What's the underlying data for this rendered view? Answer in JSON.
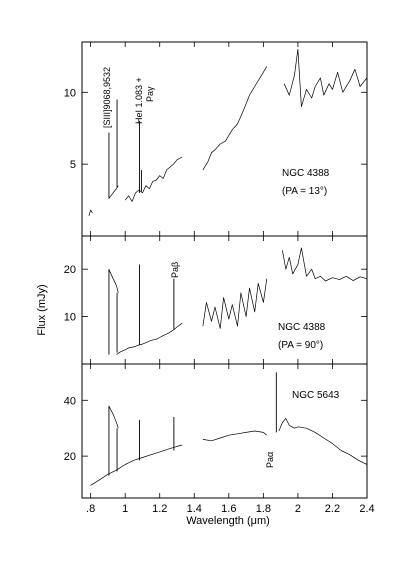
{
  "figure": {
    "ylabel": "Flux (mJy)",
    "xlabel": "Wavelength (μm)",
    "x_ticks": [
      ".8",
      "1",
      "1.2",
      "1.4",
      "1.6",
      "1.8",
      "2",
      "2.2",
      "2.4"
    ]
  },
  "chart_data": [
    {
      "type": "line",
      "name": "panel-1",
      "xlim": [
        0.75,
        2.4
      ],
      "ylim": [
        0,
        13.5
      ],
      "y_ticks": [
        5,
        10
      ],
      "object_label": "NGC 4388",
      "pa_label": "(PA = 13°)",
      "line_labels": [
        "[SIII]9068,9532",
        "HeI 1.083 +",
        "Paγ"
      ],
      "spectrum": {
        "segments": [
          {
            "x": [
              0.79,
              0.8,
              0.81
            ],
            "y": [
              1.4,
              1.8,
              1.6
            ]
          },
          {
            "x": [
              0.905,
              0.93,
              0.95,
              0.96
            ],
            "y": [
              2.6,
              3.0,
              3.3,
              3.5
            ]
          },
          {
            "x": [
              1.0,
              1.02,
              1.04,
              1.06,
              1.08,
              1.1,
              1.12,
              1.14,
              1.16,
              1.18,
              1.2,
              1.22,
              1.24,
              1.26,
              1.28,
              1.3,
              1.33
            ],
            "y": [
              2.5,
              2.8,
              2.4,
              3.0,
              3.2,
              3.0,
              3.5,
              3.3,
              3.8,
              3.9,
              4.2,
              4.0,
              4.6,
              4.8,
              5.0,
              5.3,
              5.5
            ]
          },
          {
            "x": [
              1.45,
              1.48,
              1.5,
              1.52,
              1.55,
              1.58,
              1.6,
              1.62,
              1.65,
              1.68,
              1.7,
              1.72,
              1.75,
              1.78,
              1.8,
              1.82
            ],
            "y": [
              4.6,
              5.2,
              5.8,
              6.0,
              6.4,
              6.6,
              7.0,
              7.4,
              7.8,
              8.6,
              9.2,
              9.8,
              10.4,
              11.0,
              11.4,
              11.8
            ]
          },
          {
            "x": [
              1.92,
              1.95,
              1.98,
              2.0,
              2.02,
              2.05,
              2.08,
              2.1,
              2.13,
              2.15,
              2.18,
              2.2,
              2.23,
              2.26,
              2.3,
              2.33,
              2.36,
              2.4
            ],
            "y": [
              10.6,
              9.8,
              11.2,
              13.0,
              9.0,
              10.2,
              9.6,
              10.4,
              11.0,
              9.8,
              10.6,
              10.2,
              11.4,
              10.0,
              10.8,
              11.6,
              10.4,
              11.0
            ]
          }
        ],
        "emission_lines": [
          {
            "x": 0.906,
            "y0": 2.6,
            "y1": 7.2
          },
          {
            "x": 0.953,
            "y0": 3.4,
            "y1": 9.5
          },
          {
            "x": 1.083,
            "y0": 3.0,
            "y1": 8.0
          },
          {
            "x": 1.094,
            "y0": 3.1,
            "y1": 4.6
          }
        ]
      }
    },
    {
      "type": "line",
      "name": "panel-2",
      "xlim": [
        0.75,
        2.4
      ],
      "ylim": [
        0,
        27
      ],
      "y_ticks": [
        10,
        20
      ],
      "object_label": "NGC 4388",
      "pa_label": "(PA = 90°)",
      "line_labels": [
        "Paβ"
      ],
      "spectrum": {
        "segments": [
          {
            "x": [
              0.905,
              0.93,
              0.95,
              0.96
            ],
            "y": [
              20,
              18,
              16.5,
              15
            ]
          },
          {
            "x": [
              0.95,
              0.97,
              1.0,
              1.02,
              1.05,
              1.08,
              1.1,
              1.12,
              1.15,
              1.18,
              1.2,
              1.22,
              1.25,
              1.28,
              1.3,
              1.33
            ],
            "y": [
              2.0,
              2.5,
              3.0,
              3.4,
              3.6,
              4.0,
              4.2,
              4.5,
              5.0,
              5.2,
              5.6,
              6.0,
              6.5,
              7.2,
              7.8,
              8.6
            ]
          },
          {
            "x": [
              1.45,
              1.47,
              1.5,
              1.52,
              1.55,
              1.57,
              1.6,
              1.62,
              1.65,
              1.67,
              1.7,
              1.72,
              1.75,
              1.77,
              1.8,
              1.82
            ],
            "y": [
              8.0,
              13.0,
              9.0,
              12.0,
              7.5,
              14.0,
              9.5,
              12.5,
              8.0,
              15.0,
              10.0,
              16.0,
              11.0,
              17.0,
              13.0,
              18.0
            ]
          },
          {
            "x": [
              1.91,
              1.93,
              1.95,
              1.97,
              2.0,
              2.02,
              2.05,
              2.08,
              2.1,
              2.13,
              2.16,
              2.2,
              2.24,
              2.28,
              2.32,
              2.36,
              2.4
            ],
            "y": [
              24.0,
              20.0,
              22.5,
              19.0,
              21.0,
              24.5,
              18.5,
              20.0,
              18.0,
              18.5,
              17.5,
              18.2,
              17.8,
              18.5,
              17.6,
              18.4,
              18.0
            ]
          }
        ],
        "emission_lines": [
          {
            "x": 0.906,
            "y0": 2.0,
            "y1": 20.0
          },
          {
            "x": 0.953,
            "y0": 2.4,
            "y1": 15.0
          },
          {
            "x": 1.083,
            "y0": 4.0,
            "y1": 21.0
          },
          {
            "x": 1.282,
            "y0": 7.2,
            "y1": 18.0
          }
        ]
      }
    },
    {
      "type": "line",
      "name": "panel-3",
      "xlim": [
        0.75,
        2.4
      ],
      "ylim": [
        5,
        53
      ],
      "y_ticks": [
        20,
        40
      ],
      "object_label": "NGC 5643",
      "line_labels": [
        "Paα"
      ],
      "spectrum": {
        "segments": [
          {
            "x": [
              0.905,
              0.93,
              0.95,
              0.96
            ],
            "y": [
              38,
              35,
              32,
              30
            ]
          },
          {
            "x": [
              0.8,
              0.85,
              0.9,
              0.95,
              1.0,
              1.05,
              1.1,
              1.15,
              1.2,
              1.25,
              1.3,
              1.33
            ],
            "y": [
              9.5,
              11.5,
              13.5,
              15.0,
              17.0,
              18.5,
              19.5,
              20.5,
              21.5,
              22.5,
              23.5,
              24.0
            ]
          },
          {
            "x": [
              1.45,
              1.5,
              1.55,
              1.6,
              1.65,
              1.7,
              1.75,
              1.8,
              1.82
            ],
            "y": [
              26.0,
              25.5,
              26.5,
              27.5,
              28.0,
              28.5,
              29.0,
              28.5,
              27.5
            ]
          },
          {
            "x": [
              1.89,
              1.91,
              1.93,
              1.95,
              1.98,
              2.0,
              2.05,
              2.1,
              2.15,
              2.2,
              2.25,
              2.3,
              2.35,
              2.4
            ],
            "y": [
              29.0,
              32.0,
              33.5,
              31.0,
              30.0,
              30.5,
              30.0,
              28.5,
              26.5,
              24.5,
              22.0,
              20.5,
              18.5,
              17.0
            ]
          }
        ],
        "emission_lines": [
          {
            "x": 0.906,
            "y0": 13.0,
            "y1": 38.0
          },
          {
            "x": 0.953,
            "y0": 14.5,
            "y1": 30.0
          },
          {
            "x": 1.083,
            "y0": 18.5,
            "y1": 33.0
          },
          {
            "x": 1.282,
            "y0": 22.0,
            "y1": 34.0
          },
          {
            "x": 1.875,
            "y0": 28.5,
            "y1": 50.0
          }
        ]
      }
    }
  ]
}
